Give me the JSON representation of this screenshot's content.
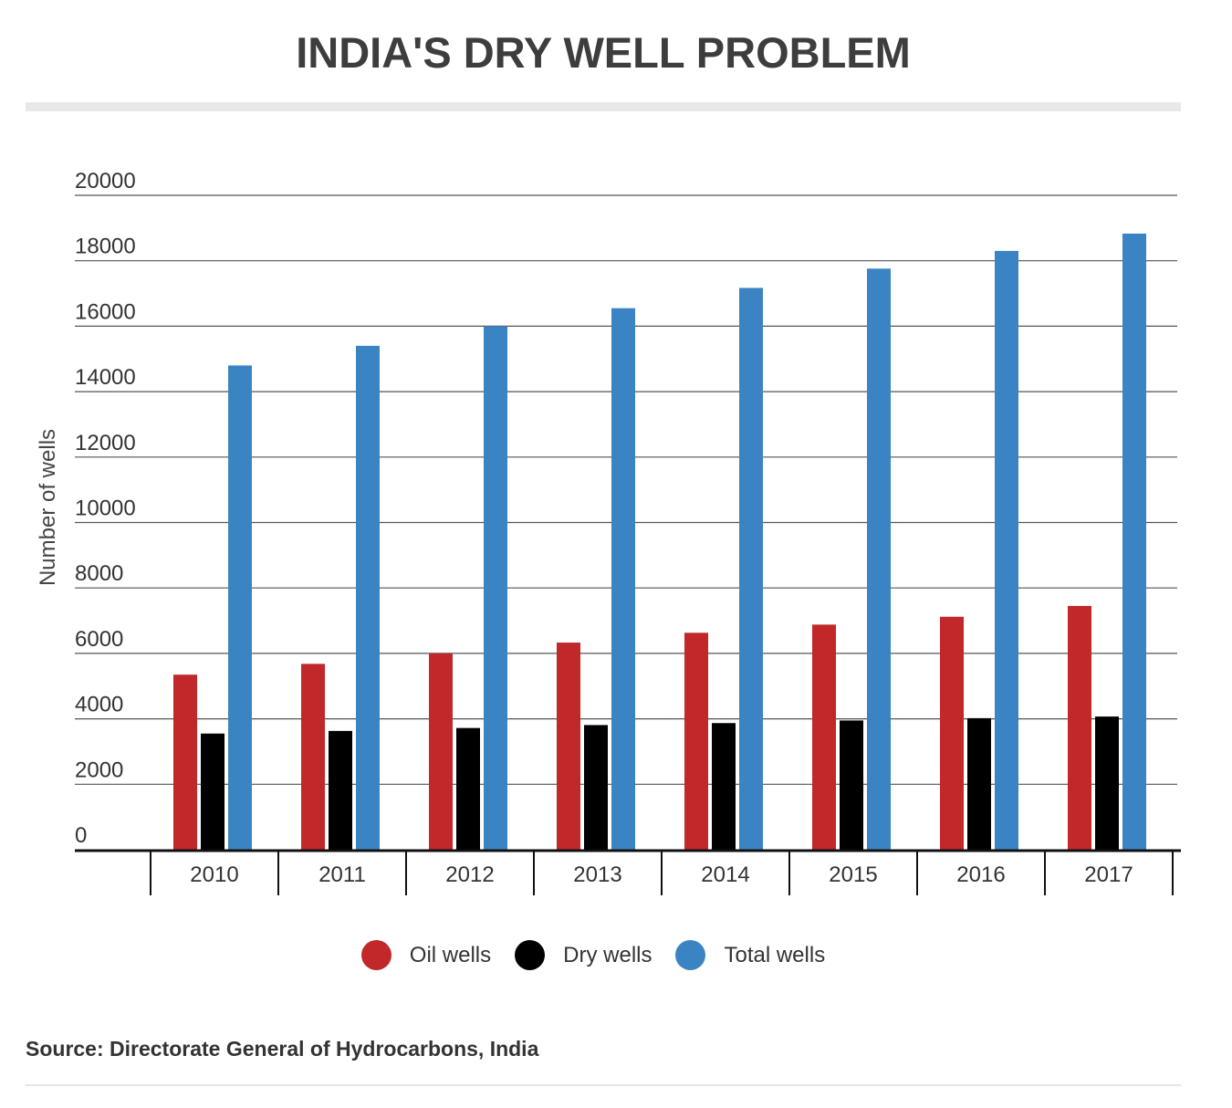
{
  "chart_data": {
    "type": "bar",
    "title": "INDIA'S DRY WELL PROBLEM",
    "xlabel": "",
    "ylabel": "Number of wells",
    "ylim": [
      0,
      20000
    ],
    "yticks": [
      0,
      2000,
      4000,
      6000,
      8000,
      10000,
      12000,
      14000,
      16000,
      18000,
      20000
    ],
    "categories": [
      "2010",
      "2011",
      "2012",
      "2013",
      "2014",
      "2015",
      "2016",
      "2017"
    ],
    "series": [
      {
        "name": "Oil wells",
        "color": "#c0282a",
        "values": [
          5350,
          5680,
          6000,
          6330,
          6630,
          6880,
          7120,
          7450
        ]
      },
      {
        "name": "Dry wells",
        "color": "#000000",
        "values": [
          3550,
          3630,
          3720,
          3810,
          3870,
          3950,
          4020,
          4070
        ]
      },
      {
        "name": "Total wells",
        "color": "#3b84c4",
        "values": [
          14800,
          15400,
          16000,
          16550,
          17170,
          17760,
          18300,
          18830
        ]
      }
    ],
    "legend_position": "bottom-center",
    "source": "Source: Directorate General of Hydrocarbons, India"
  }
}
